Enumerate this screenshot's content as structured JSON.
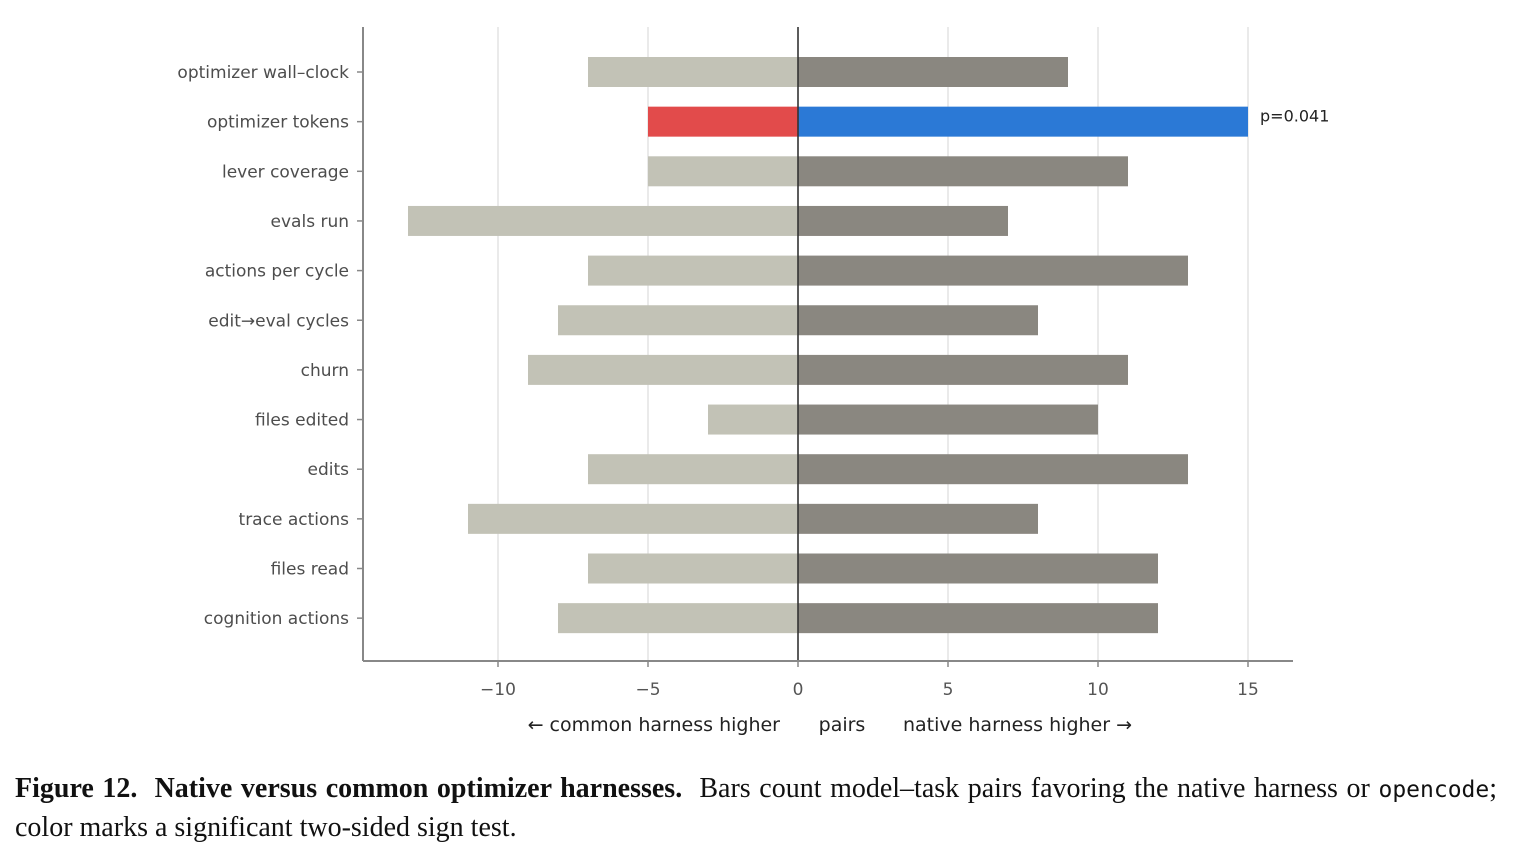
{
  "chart_data": {
    "type": "bar",
    "orientation": "horizontal-diverging",
    "categories": [
      "optimizer wall–clock",
      "optimizer tokens",
      "lever coverage",
      "evals run",
      "actions per cycle",
      "edit→eval cycles",
      "churn",
      "files edited",
      "edits",
      "trace actions",
      "files read",
      "cognition actions"
    ],
    "series": [
      {
        "values": [
          -7,
          -5,
          -5,
          -13,
          -7,
          -8,
          -9,
          -3,
          -7,
          -11,
          -7,
          -8
        ]
      },
      {
        "values": [
          9,
          15,
          11,
          7,
          13,
          8,
          11,
          10,
          13,
          8,
          12,
          12
        ]
      }
    ],
    "highlight_index": 1,
    "annotations": [
      {
        "category": "optimizer tokens",
        "text": "p=0.041"
      }
    ],
    "xlim": [
      -14.5,
      16.5
    ],
    "xticks": [
      -10,
      -5,
      0,
      5,
      10,
      15
    ],
    "xtick_labels": [
      "−10",
      "−5",
      "0",
      "5",
      "10",
      "15"
    ],
    "xlabel_left": "← common harness higher",
    "xlabel_center": "pairs",
    "xlabel_right": "native harness higher →",
    "grid": true,
    "colors": {
      "left_default": "#c2c2b6",
      "right_default": "#8a8780",
      "left_highlight": "#e24b4b",
      "right_highlight": "#2b79d6",
      "grid": "#dddddd",
      "axis": "#888888",
      "zero_line": "#333333"
    }
  },
  "caption": {
    "label": "Figure 12.",
    "title": "Native versus common optimizer harnesses.",
    "text_before_code": "Bars count model–task pairs favoring the native harness or",
    "code": "opencode",
    "text_after_code": "; color marks a significant two-sided sign test."
  }
}
